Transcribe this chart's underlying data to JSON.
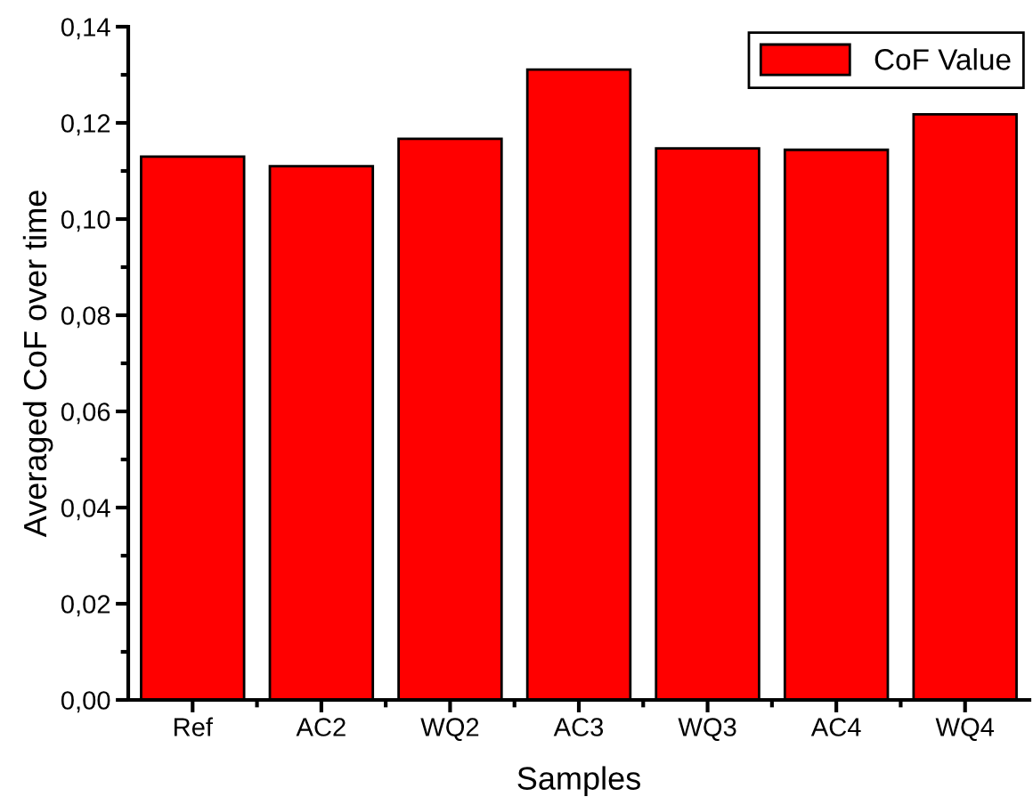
{
  "chart_data": {
    "type": "bar",
    "xlabel": "Samples",
    "ylabel": "Averaged CoF over time",
    "categories": [
      "Ref",
      "AC2",
      "WQ2",
      "AC3",
      "WQ3",
      "AC4",
      "WQ4"
    ],
    "series": [
      {
        "name": "CoF Value",
        "color": "#ff0000",
        "values": [
          0.113,
          0.111,
          0.1167,
          0.1311,
          0.1147,
          0.1144,
          0.1218
        ]
      }
    ],
    "ylim": [
      0,
      0.14
    ],
    "yticks": [
      {
        "value": 0,
        "label": "0,00"
      },
      {
        "value": 0.02,
        "label": "0,02"
      },
      {
        "value": 0.04,
        "label": "0,04"
      },
      {
        "value": 0.06,
        "label": "0,06"
      },
      {
        "value": 0.08,
        "label": "0,08"
      },
      {
        "value": 0.1,
        "label": "0,10"
      },
      {
        "value": 0.12,
        "label": "0,12"
      },
      {
        "value": 0.14,
        "label": "0,14"
      }
    ],
    "legend": "top right",
    "grid": false
  }
}
